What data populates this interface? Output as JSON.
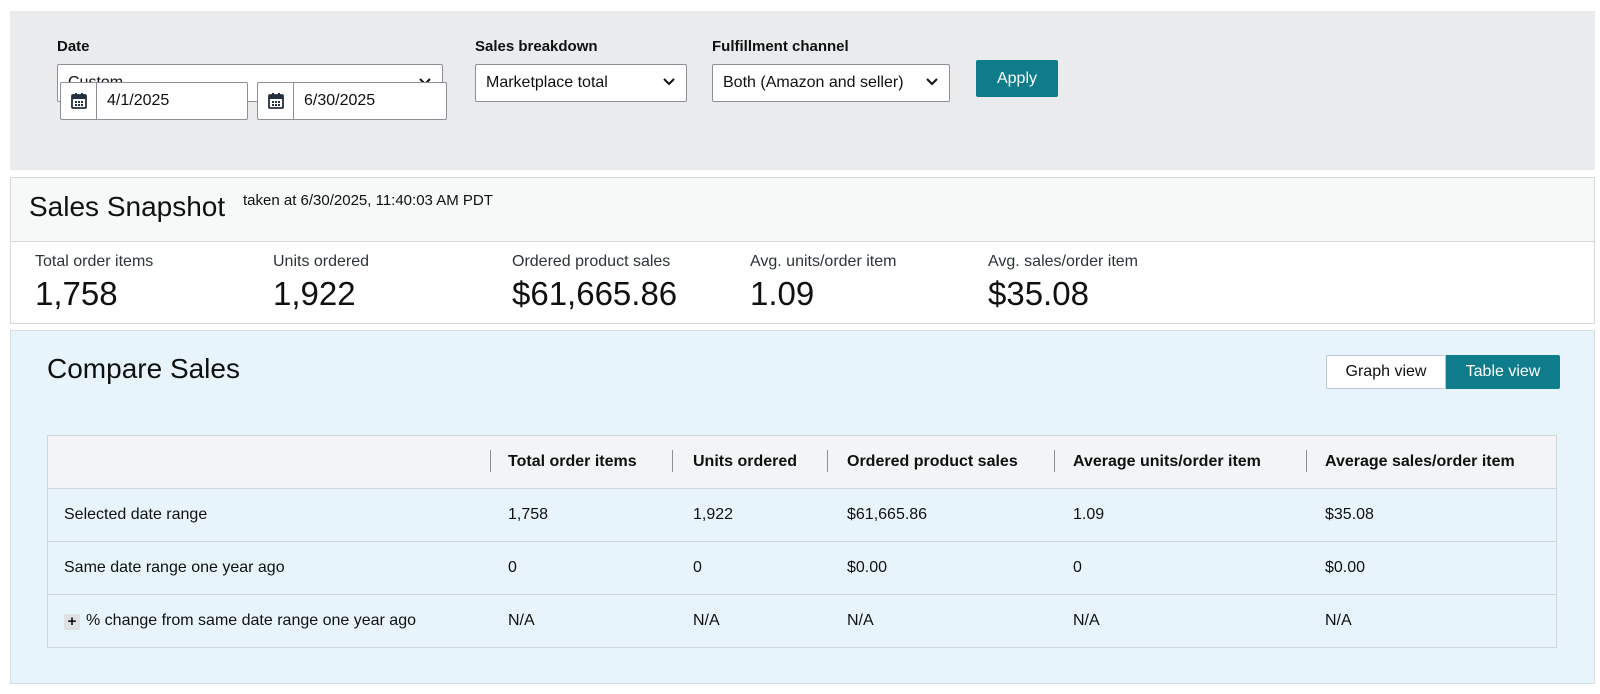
{
  "filters": {
    "date": {
      "label": "Date",
      "value": "Custom",
      "start": "4/1/2025",
      "end": "6/30/2025"
    },
    "sales_breakdown": {
      "label": "Sales breakdown",
      "value": "Marketplace total"
    },
    "fulfillment": {
      "label": "Fulfillment channel",
      "value": "Both (Amazon and seller)"
    },
    "apply_label": "Apply"
  },
  "snapshot": {
    "title": "Sales Snapshot",
    "taken_at": "taken at 6/30/2025, 11:40:03 AM PDT",
    "metrics": [
      {
        "label": "Total order items",
        "value": "1,758"
      },
      {
        "label": "Units ordered",
        "value": "1,922"
      },
      {
        "label": "Ordered product sales",
        "value": "$61,665.86"
      },
      {
        "label": "Avg. units/order item",
        "value": "1.09"
      },
      {
        "label": "Avg. sales/order item",
        "value": "$35.08"
      }
    ]
  },
  "compare": {
    "title": "Compare Sales",
    "toggle": {
      "graph": "Graph view",
      "table": "Table view",
      "active": "table"
    },
    "columns": [
      "Total order items",
      "Units ordered",
      "Ordered product sales",
      "Average units/order item",
      "Average sales/order item"
    ],
    "rows": [
      {
        "label": "Selected date range",
        "values": [
          "1,758",
          "1,922",
          "$61,665.86",
          "1.09",
          "$35.08"
        ]
      },
      {
        "label": "Same date range one year ago",
        "values": [
          "0",
          "0",
          "$0.00",
          "0",
          "$0.00"
        ]
      },
      {
        "label": "% change from same date range one year ago",
        "expand": "+",
        "values": [
          "N/A",
          "N/A",
          "N/A",
          "N/A",
          "N/A"
        ]
      }
    ]
  },
  "colors": {
    "accent": "#0f7c8c",
    "filter_bg": "#e9ebed",
    "compare_bg": "#e8f4fb"
  },
  "icons": {
    "calendar": "calendar-icon",
    "chevron": "chevron-down-icon",
    "expand": "plus-icon"
  }
}
